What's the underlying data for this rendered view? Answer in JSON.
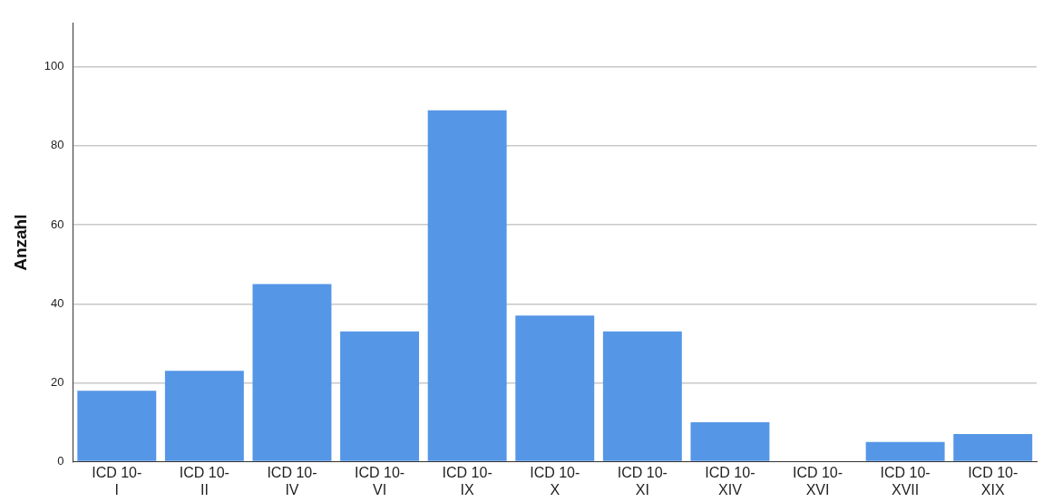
{
  "chart_data": {
    "type": "bar",
    "ylabel": "Anzahl",
    "categories": [
      "ICD 10-I",
      "ICD 10-II",
      "ICD 10-IV",
      "ICD 10-VI",
      "ICD 10-IX",
      "ICD 10-X",
      "ICD 10-XI",
      "ICD 10-XIV",
      "ICD 10-XVI",
      "ICD 10-XVII",
      "ICD 10-XIX"
    ],
    "values": [
      18,
      23,
      45,
      33,
      89,
      37,
      33,
      10,
      0,
      5,
      7
    ],
    "color": "#5596e6",
    "ylim": [
      0,
      111
    ],
    "yticks": [
      0,
      20,
      40,
      60,
      80,
      100
    ],
    "grid": "y"
  }
}
